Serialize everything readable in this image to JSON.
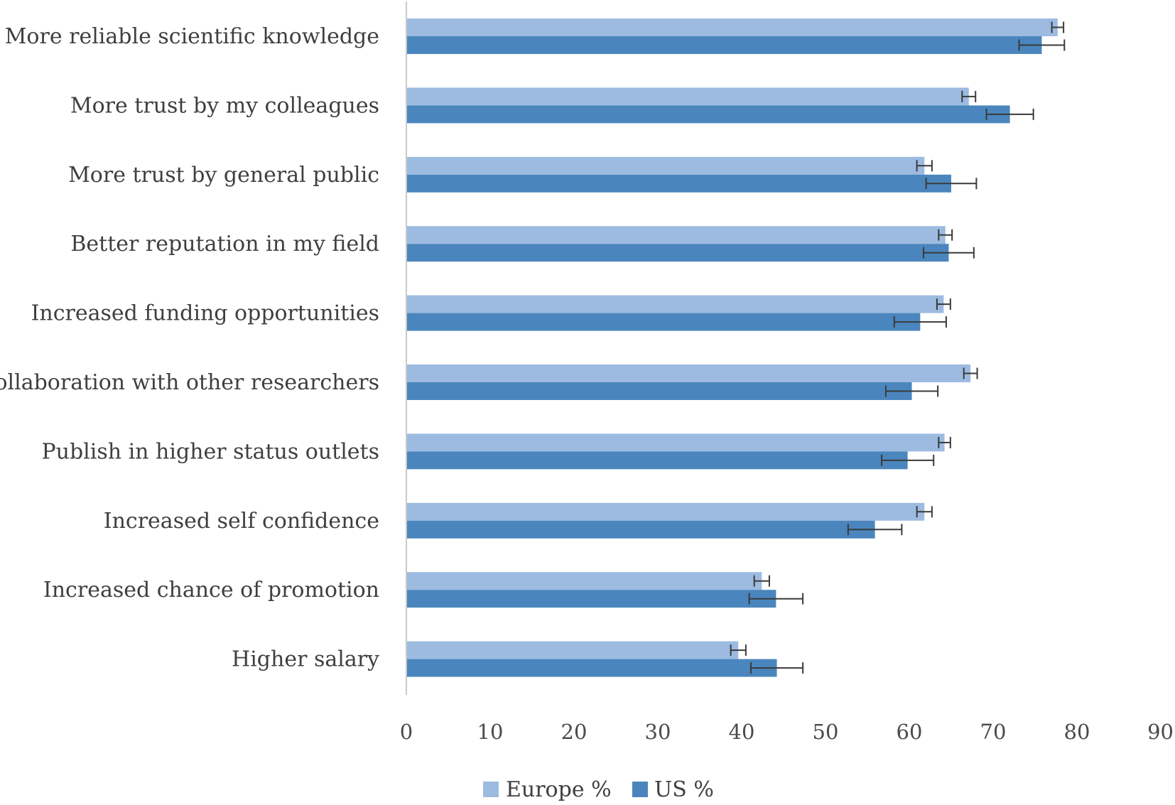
{
  "chart_data": {
    "type": "bar",
    "orientation": "horizontal",
    "categories": [
      "More reliable scientific knowledge",
      "More trust by my colleagues",
      "More trust by general public",
      "Better reputation in my field",
      "Increased funding opportunities",
      "Collaboration with other researchers",
      "Publish in higher status outlets",
      "Increased self confidence",
      "Increased chance of promotion",
      "Higher salary"
    ],
    "series": [
      {
        "name": "Europe %",
        "color": "#9dbbe0",
        "values": [
          77.7,
          67.1,
          61.8,
          64.3,
          64.1,
          67.3,
          64.2,
          61.8,
          42.4,
          39.6
        ],
        "error": [
          0.7,
          0.8,
          0.9,
          0.8,
          0.8,
          0.8,
          0.7,
          0.9,
          0.9,
          0.9
        ]
      },
      {
        "name": "US %",
        "color": "#4a86bd",
        "values": [
          75.8,
          72.0,
          65.0,
          64.7,
          61.3,
          60.3,
          59.8,
          55.9,
          44.1,
          44.2
        ],
        "error": [
          2.7,
          2.8,
          3.0,
          3.0,
          3.1,
          3.1,
          3.1,
          3.2,
          3.2,
          3.1
        ]
      }
    ],
    "xlim": [
      0,
      90
    ],
    "xticks": [
      "0",
      "10",
      "20",
      "30",
      "40",
      "50",
      "60",
      "70",
      "80",
      "90"
    ],
    "title": "",
    "xlabel": "",
    "ylabel": "",
    "grid": false,
    "legend": "bottom"
  }
}
